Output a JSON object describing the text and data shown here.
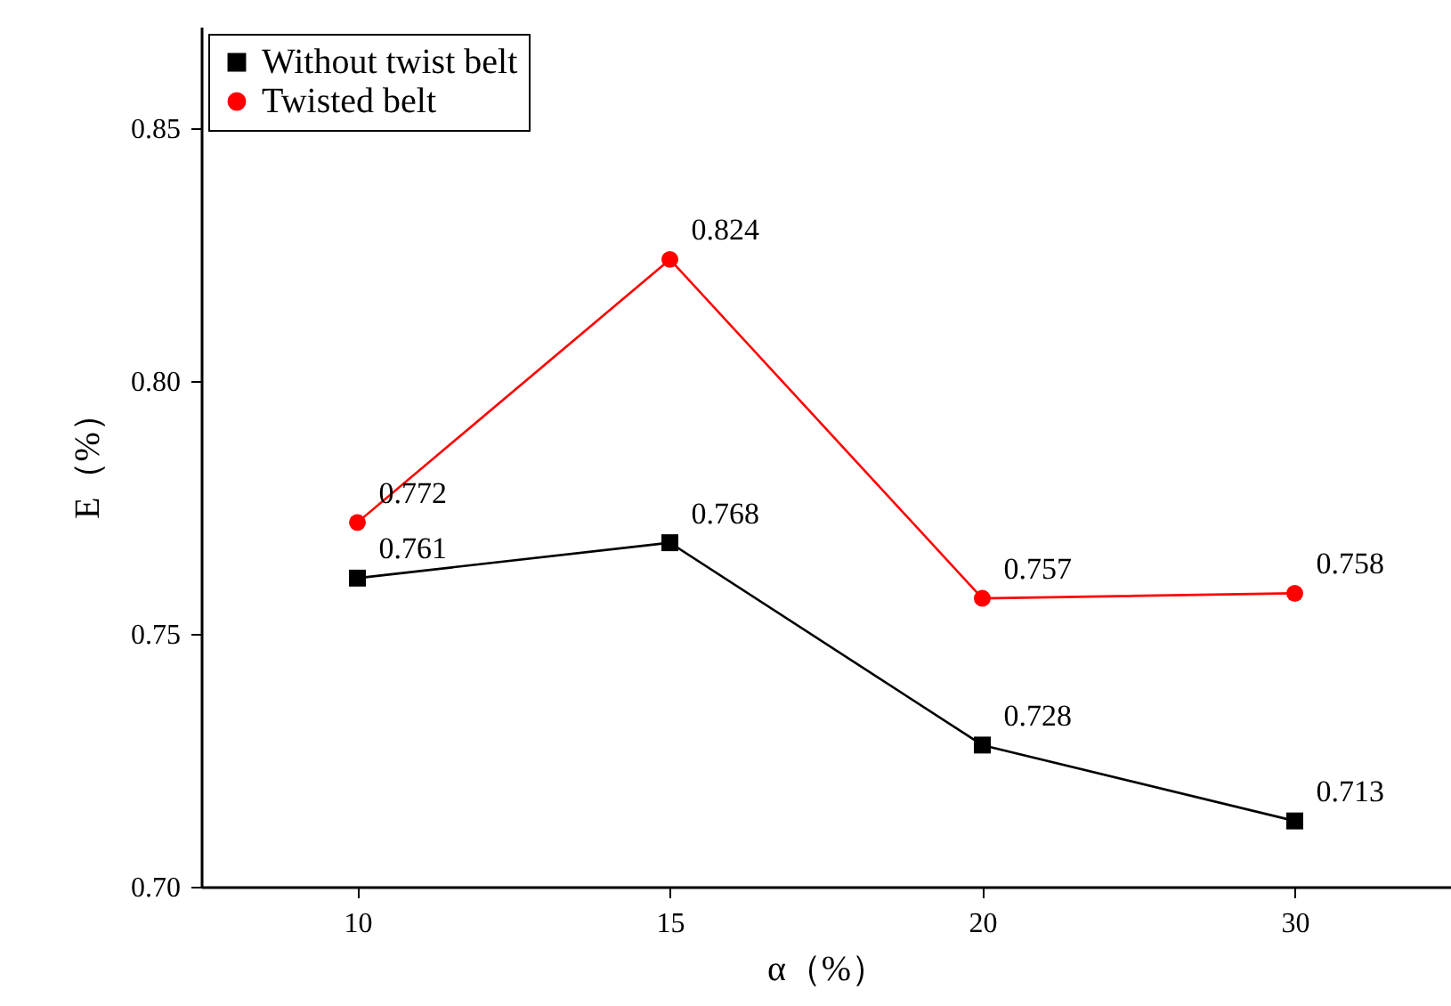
{
  "chart_data": {
    "type": "line",
    "xlabel": "α（%）",
    "ylabel": "E（%）",
    "categories": [
      "10",
      "15",
      "20",
      "30"
    ],
    "series": [
      {
        "name": "Without twist belt",
        "color": "#000000",
        "marker": "square",
        "values": [
          0.761,
          0.768,
          0.728,
          0.713
        ]
      },
      {
        "name": "Twisted belt",
        "color": "#ff0000",
        "marker": "circle",
        "values": [
          0.772,
          0.824,
          0.757,
          0.758
        ]
      }
    ],
    "ylim": [
      0.7,
      0.87
    ],
    "yticks": [
      {
        "value": 0.7,
        "label": "0.70"
      },
      0.75,
      {
        "value": 0.8,
        "label": "0.80"
      },
      0.85
    ],
    "data_labels": true,
    "legend": "top left",
    "grid": false,
    "line_style": "solid"
  }
}
